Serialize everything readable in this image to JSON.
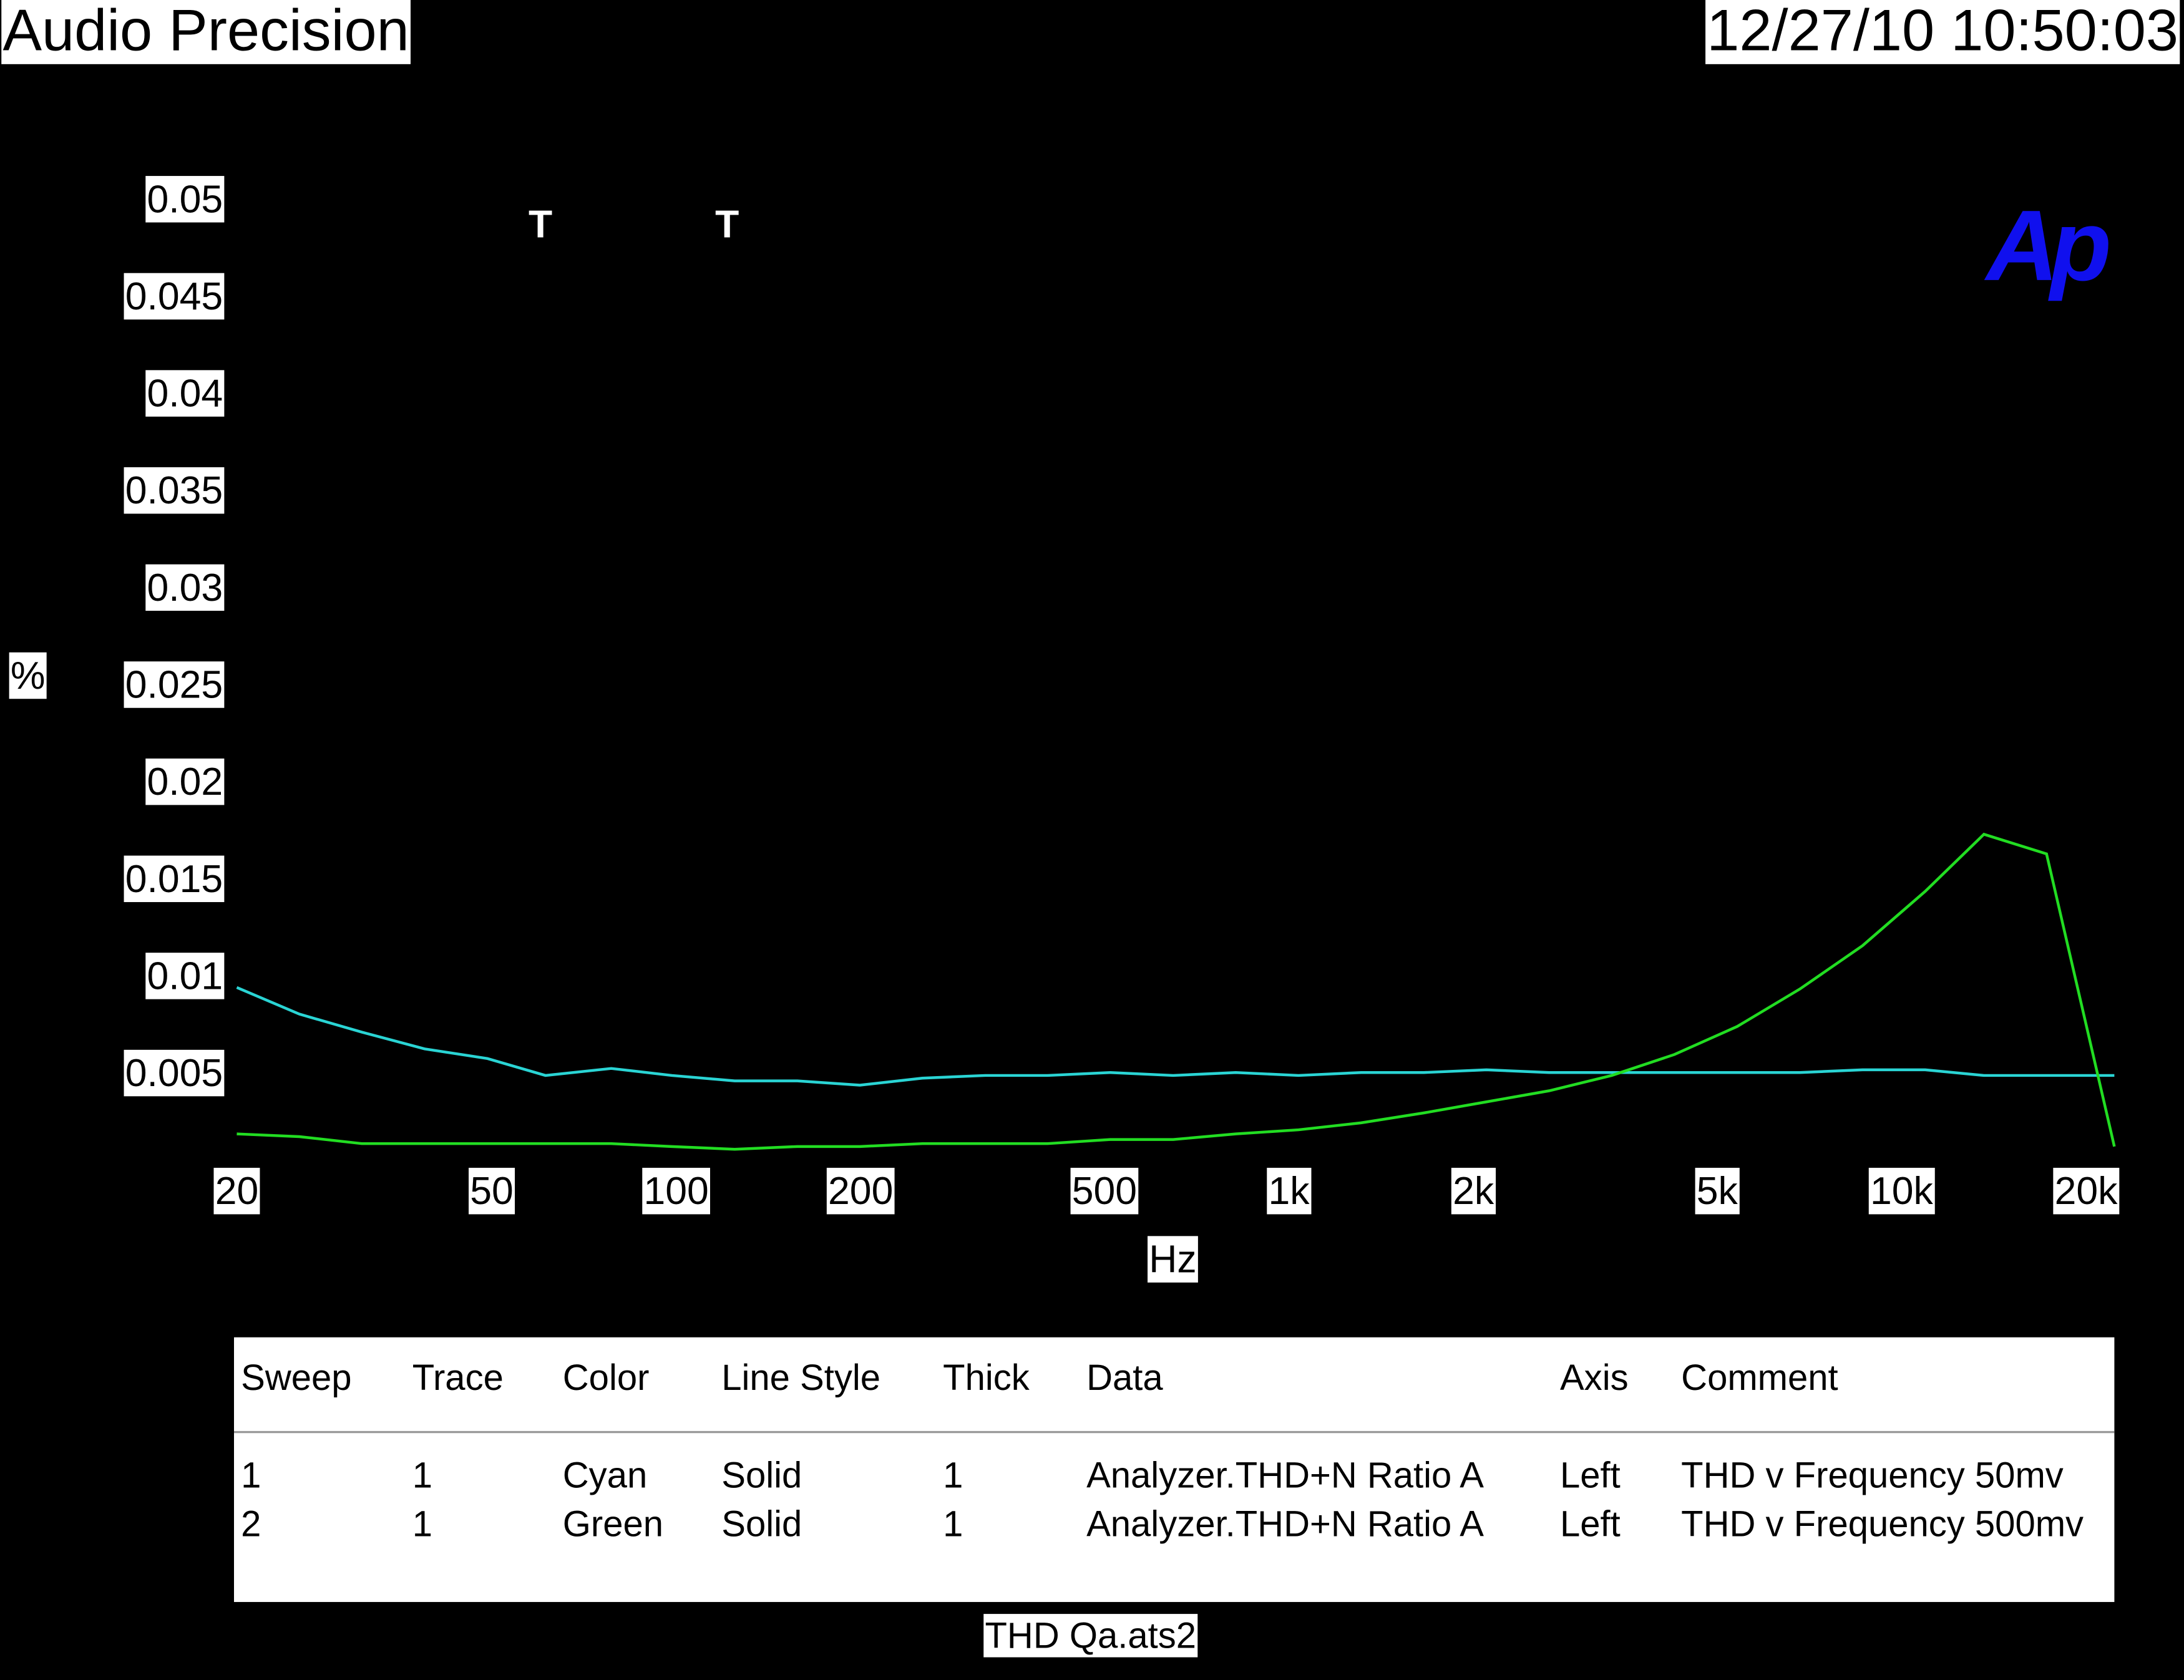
{
  "header": {
    "title": "Audio Precision",
    "timestamp": "12/27/10 10:50:03"
  },
  "chart_data": {
    "type": "line",
    "logo": "Ap",
    "annotations": [
      "T",
      "T"
    ],
    "ylabel": "%",
    "xlabel": "Hz",
    "xscale": "log",
    "grid": false,
    "x": [
      20,
      25.3,
      32,
      40.5,
      51.3,
      63.8,
      81.7,
      102.6,
      129.9,
      164.4,
      208,
      263,
      333,
      421,
      533,
      675,
      854,
      1081,
      1368,
      1731,
      2191,
      2773,
      3509,
      4441,
      5621,
      7114,
      9003,
      11395,
      14210,
      17980,
      23200
    ],
    "series": [
      {
        "color": "#2ad4d4",
        "values": [
          0.00955,
          0.00818,
          0.00725,
          0.00639,
          0.00589,
          0.00502,
          0.00538,
          0.00502,
          0.00474,
          0.00474,
          0.00452,
          0.00488,
          0.00502,
          0.00502,
          0.00517,
          0.00502,
          0.00517,
          0.00502,
          0.00517,
          0.00517,
          0.00531,
          0.00517,
          0.00517,
          0.00517,
          0.00517,
          0.00517,
          0.00531,
          0.00531,
          0.00502,
          0.00502,
          0.00502
        ]
      },
      {
        "color": "#22dd22",
        "values": [
          0.00201,
          0.00187,
          0.00151,
          0.00151,
          0.00151,
          0.00151,
          0.00151,
          0.00136,
          0.00122,
          0.00136,
          0.00136,
          0.00151,
          0.00151,
          0.00151,
          0.00172,
          0.00172,
          0.00201,
          0.00222,
          0.00258,
          0.00309,
          0.00366,
          0.00423,
          0.00502,
          0.0061,
          0.00754,
          0.00947,
          0.0117,
          0.0145,
          0.01744,
          0.01643,
          0.00136
        ]
      }
    ],
    "xlim": [
      20,
      23200
    ],
    "ylim": [
      0,
      0.05
    ],
    "xticks": [
      20,
      50,
      100,
      200,
      500,
      {
        "value": 1000,
        "label": "1k"
      },
      {
        "value": 2000,
        "label": "2k"
      },
      {
        "value": 5000,
        "label": "5k"
      },
      {
        "value": 10000,
        "label": "10k"
      },
      {
        "value": 20000,
        "label": "20k"
      }
    ],
    "yticks": [
      0.005,
      0.01,
      0.015,
      0.02,
      0.025,
      0.03,
      0.035,
      0.04,
      0.045,
      0.05
    ]
  },
  "legend_table": {
    "columns": [
      "Sweep",
      "Trace",
      "Color",
      "Line Style",
      "Thick",
      "Data",
      "Axis",
      "Comment"
    ],
    "rows": [
      [
        "1",
        "1",
        "Cyan",
        "Solid",
        "1",
        "Analyzer.THD+N Ratio A",
        "Left",
        "THD v Frequency 50mv"
      ],
      [
        "2",
        "1",
        "Green",
        "Solid",
        "1",
        "Analyzer.THD+N Ratio A",
        "Left",
        "THD v Frequency 500mv"
      ]
    ]
  },
  "footer": "THD Qa.ats2"
}
